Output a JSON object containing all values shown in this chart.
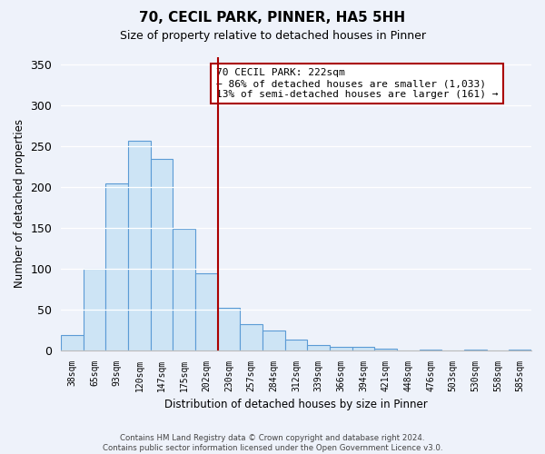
{
  "title": "70, CECIL PARK, PINNER, HA5 5HH",
  "subtitle": "Size of property relative to detached houses in Pinner",
  "xlabel": "Distribution of detached houses by size in Pinner",
  "ylabel": "Number of detached properties",
  "bar_labels": [
    "38sqm",
    "65sqm",
    "93sqm",
    "120sqm",
    "147sqm",
    "175sqm",
    "202sqm",
    "230sqm",
    "257sqm",
    "284sqm",
    "312sqm",
    "339sqm",
    "366sqm",
    "394sqm",
    "421sqm",
    "448sqm",
    "476sqm",
    "503sqm",
    "530sqm",
    "558sqm",
    "585sqm"
  ],
  "bar_values": [
    19,
    100,
    205,
    257,
    235,
    149,
    95,
    53,
    33,
    25,
    14,
    7,
    5,
    5,
    2,
    0,
    1,
    0,
    1,
    0,
    1
  ],
  "bar_color": "#cde4f5",
  "bar_edge_color": "#5b9bd5",
  "vline_index": 7,
  "vline_color": "#aa0000",
  "ylim": [
    0,
    360
  ],
  "yticks": [
    0,
    50,
    100,
    150,
    200,
    250,
    300,
    350
  ],
  "annotation_title": "70 CECIL PARK: 222sqm",
  "annotation_line1": "← 86% of detached houses are smaller (1,033)",
  "annotation_line2": "13% of semi-detached houses are larger (161) →",
  "footer_line1": "Contains HM Land Registry data © Crown copyright and database right 2024.",
  "footer_line2": "Contains public sector information licensed under the Open Government Licence v3.0.",
  "bg_color": "#eef2fa"
}
